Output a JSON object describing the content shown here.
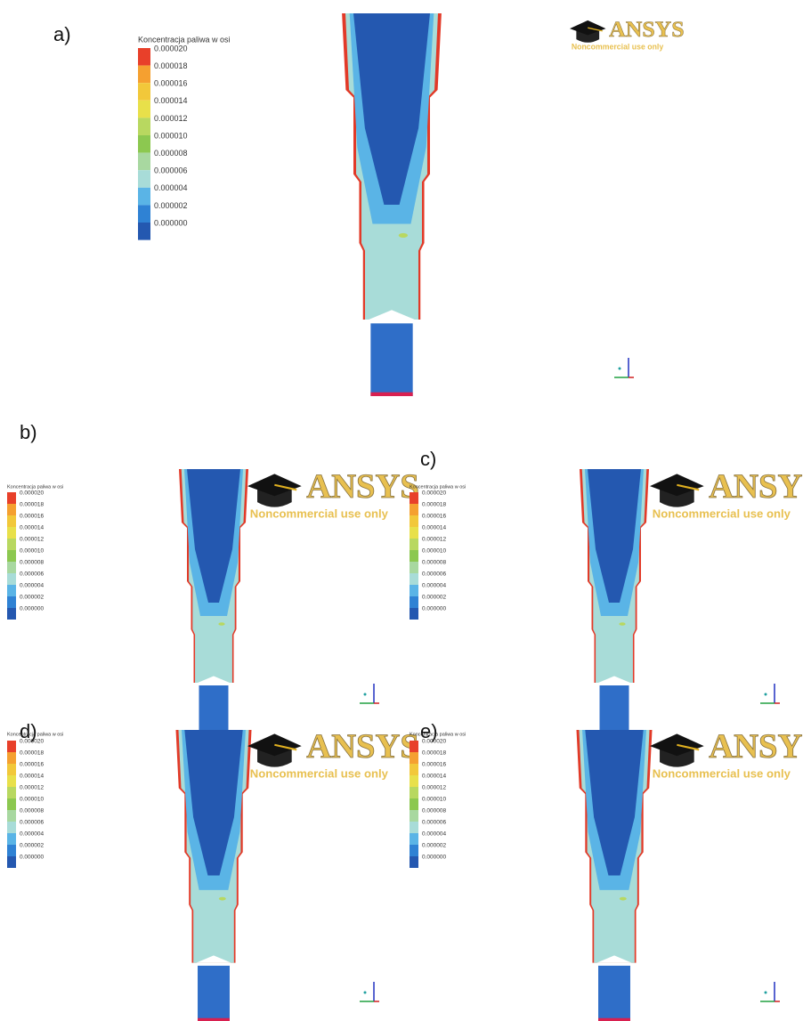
{
  "legend_colors": [
    "#e8402a",
    "#f5a030",
    "#f2c83a",
    "#e8e04a",
    "#b8d860",
    "#8cc850",
    "#a8d8a0",
    "#a8dcd8",
    "#5ab4e6",
    "#2f82d4",
    "#2458b0"
  ],
  "panels": [
    {
      "label": "a)",
      "legend": {
        "title": "Koncentracja paliwa w osi",
        "labels": [
          "0.000020",
          "0.000018",
          "0.000016",
          "0.000014",
          "0.000012",
          "0.000010",
          "0.000008",
          "0.000006",
          "0.000004",
          "0.000002",
          "0.000000"
        ]
      },
      "watermark": {
        "brand": "ANSYS",
        "note": "Noncommercial use only"
      }
    },
    {
      "label": "b)",
      "legend": {
        "title": "Koncentracja paliwa w osi",
        "labels": [
          "0.000020",
          "0.000018",
          "0.000016",
          "0.000014",
          "0.000012",
          "0.000010",
          "0.000008",
          "0.000006",
          "0.000004",
          "0.000002",
          "0.000000"
        ]
      },
      "watermark": {
        "brand": "ANSYS",
        "note": "Noncommercial use only"
      }
    },
    {
      "label": "c)",
      "legend": {
        "title": "Koncentracja paliwa w osi",
        "labels": [
          "0.000020",
          "0.000018",
          "0.000016",
          "0.000014",
          "0.000012",
          "0.000010",
          "0.000008",
          "0.000006",
          "0.000004",
          "0.000002",
          "0.000000"
        ]
      },
      "watermark": {
        "brand": "ANSYS",
        "note": "Noncommercial use only"
      }
    },
    {
      "label": "d)",
      "legend": {
        "title": "Koncentracja paliwa w osi",
        "labels": [
          "0.000020",
          "0.000018",
          "0.000016",
          "0.000014",
          "0.000012",
          "0.000010",
          "0.000008",
          "0.000006",
          "0.000004",
          "0.000002",
          "0.000000"
        ]
      },
      "watermark": {
        "brand": "ANSYS",
        "note": "Noncommercial use only"
      }
    },
    {
      "label": "e)",
      "legend": {
        "title": "Koncentracja paliwa w osi",
        "labels": [
          "0.000020",
          "0.000018",
          "0.000016",
          "0.000014",
          "0.000012",
          "0.000010",
          "0.000008",
          "0.000006",
          "0.000004",
          "0.000002",
          "0.000000"
        ]
      },
      "watermark": {
        "brand": "ANSYS",
        "note": "Noncommercial use only"
      }
    }
  ]
}
